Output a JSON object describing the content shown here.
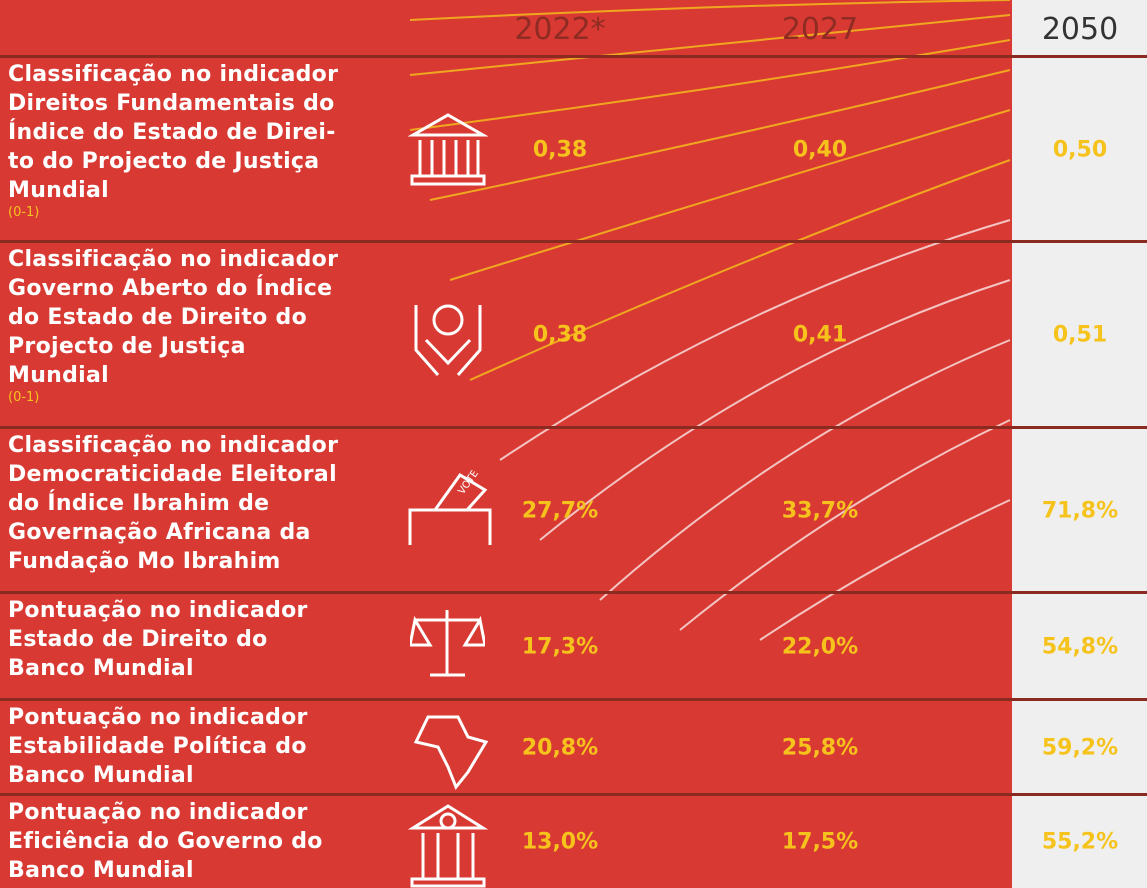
{
  "table": {
    "columns": [
      "2022*",
      "2027",
      "2050"
    ],
    "rows": [
      {
        "label": [
          "Classificação no indicador",
          "Direitos Fundamentais do",
          "Índice do Estado de Direi-",
          "to do Projecto de Justiça",
          "Mundial"
        ],
        "scale": "(0-1)",
        "values": [
          "0,38",
          "0,40",
          "0,50"
        ]
      },
      {
        "label": [
          "Classificação no indicador",
          "Governo Aberto do Índice",
          "do Estado de Direito do",
          "Projecto de Justiça",
          "Mundial"
        ],
        "scale": "(0-1)",
        "values": [
          "0,38",
          "0,41",
          "0,51"
        ]
      },
      {
        "label": [
          "Classificação no indicador",
          "Democraticidade Eleitoral",
          "do Índice Ibrahim de",
          "Governação Africana da",
          "Fundação Mo Ibrahim"
        ],
        "values": [
          "27,7%",
          "33,7%",
          "71,8%"
        ]
      },
      {
        "label": [
          "Pontuação no indicador",
          "Estado de Direito do",
          "Banco Mundial"
        ],
        "values": [
          "17,3%",
          "22,0%",
          "54,8%"
        ]
      },
      {
        "label": [
          "Pontuação no indicador",
          "Estabilidade Política do",
          "Banco Mundial"
        ],
        "values": [
          "20,8%",
          "25,8%",
          "59,2%"
        ]
      },
      {
        "label": [
          "Pontuação no indicador",
          "Eficiência do Governo do",
          "Banco Mundial"
        ],
        "values": [
          "13,0%",
          "17,5%",
          "55,2%"
        ]
      }
    ]
  }
}
